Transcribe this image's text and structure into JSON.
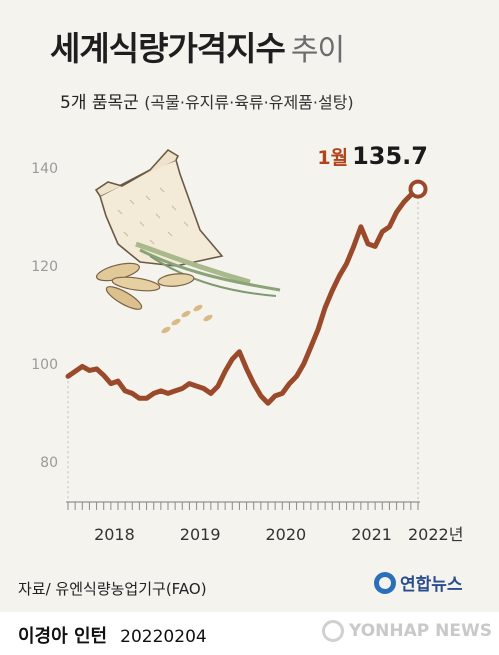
{
  "header": {
    "title": "세계식량가격지수",
    "title_suffix": "추이",
    "subtitle": "5개 품목군",
    "subtitle_paren": "(곡물·유지류·육류·유제품·설탕)"
  },
  "annotation": {
    "month": "1월",
    "value": "135.7"
  },
  "source": "자료/ 유엔식량농업기구(FAO)",
  "logo": "연합뉴스",
  "footer": {
    "author": "이경아 인턴",
    "date": "20220204",
    "watermark": "YONHAP NEWS"
  },
  "colors": {
    "line": "#9a4a2a",
    "accent_text": "#b0441c",
    "background": "#f4f3ee"
  },
  "chart_data": {
    "type": "line",
    "title": "세계식량가격지수 추이",
    "ylabel": "",
    "xlabel": "",
    "ylim": [
      80,
      140
    ],
    "yticks": [
      80,
      100,
      120,
      140
    ],
    "grid": false,
    "x_labels": [
      "2018",
      "2019",
      "2020",
      "2021",
      "2022년"
    ],
    "series": [
      {
        "name": "",
        "x": [
          "2017-12",
          "2018-01",
          "2018-02",
          "2018-03",
          "2018-04",
          "2018-05",
          "2018-06",
          "2018-07",
          "2018-08",
          "2018-09",
          "2018-10",
          "2018-11",
          "2018-12",
          "2019-01",
          "2019-02",
          "2019-03",
          "2019-04",
          "2019-05",
          "2019-06",
          "2019-07",
          "2019-08",
          "2019-09",
          "2019-10",
          "2019-11",
          "2019-12",
          "2020-01",
          "2020-02",
          "2020-03",
          "2020-04",
          "2020-05",
          "2020-06",
          "2020-07",
          "2020-08",
          "2020-09",
          "2020-10",
          "2020-11",
          "2020-12",
          "2021-01",
          "2021-02",
          "2021-03",
          "2021-04",
          "2021-05",
          "2021-06",
          "2021-07",
          "2021-08",
          "2021-09",
          "2021-10",
          "2021-11",
          "2021-12",
          "2022-01"
        ],
        "values": [
          97.5,
          98.5,
          99.5,
          98.7,
          99.0,
          97.7,
          96.0,
          96.5,
          94.5,
          94.0,
          93.0,
          93.0,
          94.0,
          94.5,
          94.0,
          94.5,
          95.0,
          96.0,
          95.5,
          95.0,
          94.0,
          95.5,
          98.5,
          101.0,
          102.5,
          99.0,
          96.0,
          93.5,
          92.0,
          93.5,
          94.0,
          96.0,
          97.5,
          100.0,
          103.5,
          107.0,
          111.5,
          115.0,
          118.0,
          120.5,
          124.0,
          128.0,
          124.5,
          124.0,
          127.0,
          128.0,
          131.0,
          133.0,
          134.5,
          135.7
        ]
      }
    ],
    "highlight": {
      "x": "2022-01",
      "label": "1월",
      "value": 135.7
    }
  }
}
